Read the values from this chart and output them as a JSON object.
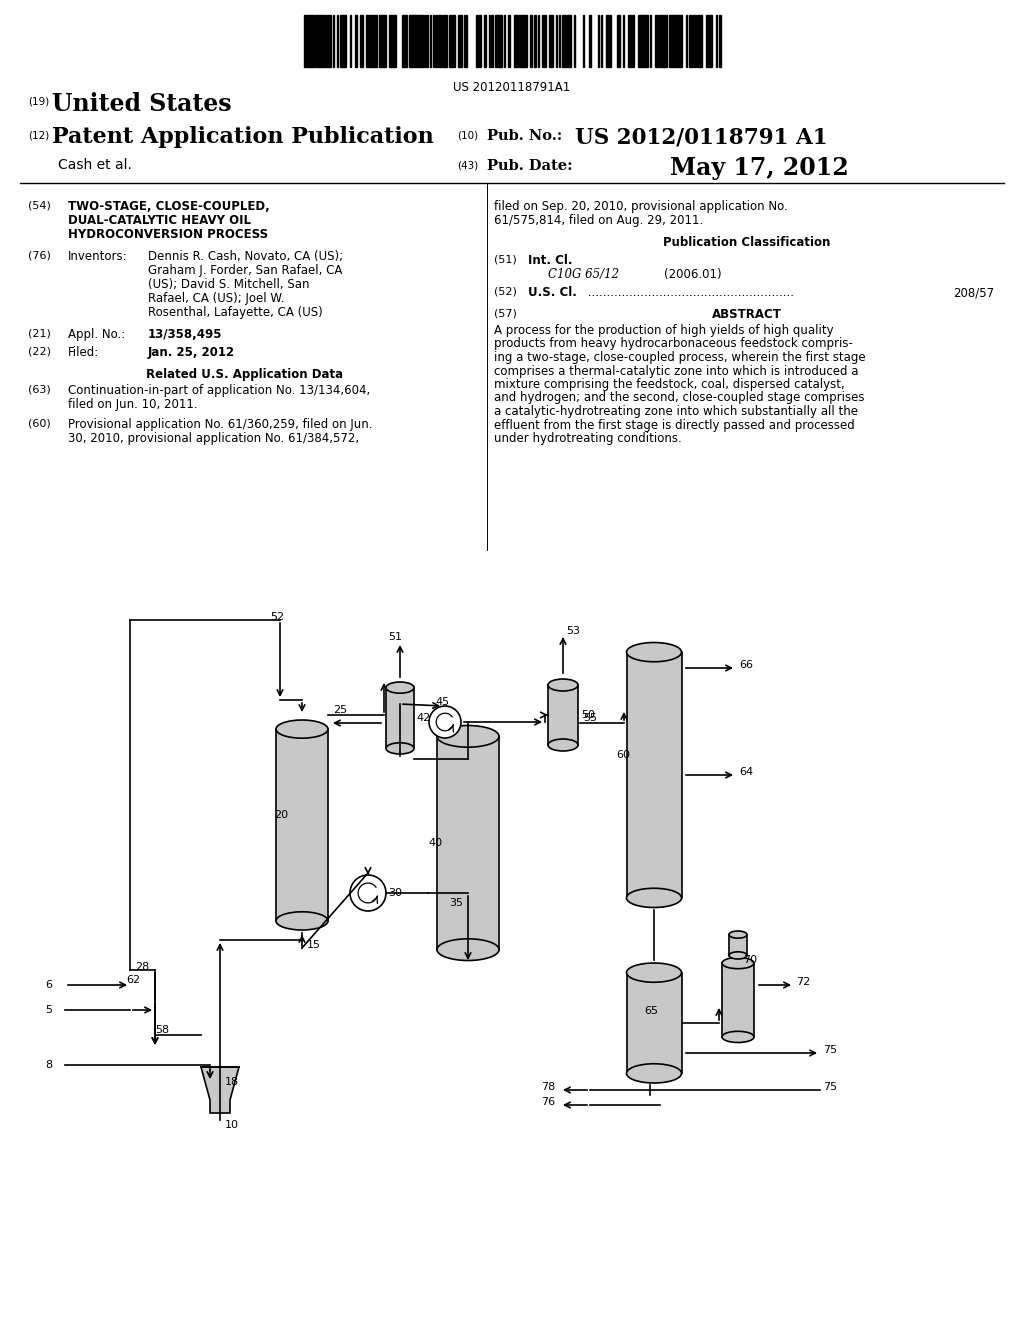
{
  "background_color": "#ffffff",
  "barcode_text": "US 20120118791A1",
  "header": {
    "us_text": "United States",
    "patent_text": "Patent Application Publication",
    "author": "Cash et al.",
    "pub_no_label": "Pub. No.:",
    "pub_no": "US 2012/0118791 A1",
    "pub_date_label": "Pub. Date:",
    "pub_date": "May 17, 2012"
  },
  "left_col": {
    "item54_title_line1": "TWO-STAGE, CLOSE-COUPLED,",
    "item54_title_line2": "DUAL-CATALYTIC HEAVY OIL",
    "item54_title_line3": "HYDROCONVERSION PROCESS",
    "item76_key": "Inventors:",
    "item76_val1": "Dennis R. Cash, Novato, CA (US);",
    "item76_val2": "Graham J. Forder, San Rafael, CA",
    "item76_val3": "(US); David S. Mitchell, San",
    "item76_val4": "Rafael, CA (US); Joel W.",
    "item76_val5": "Rosenthal, Lafayette, CA (US)",
    "item21_key": "Appl. No.:",
    "item21_value": "13/358,495",
    "item22_key": "Filed:",
    "item22_value": "Jan. 25, 2012",
    "related_header": "Related U.S. Application Data",
    "item63_text1": "Continuation-in-part of application No. 13/134,604,",
    "item63_text2": "filed on Jun. 10, 2011.",
    "item60_text1": "Provisional application No. 61/360,259, filed on Jun.",
    "item60_text2": "30, 2010, provisional application No. 61/384,572,"
  },
  "right_col": {
    "cont_text1": "filed on Sep. 20, 2010, provisional application No.",
    "cont_text2": "61/575,814, filed on Aug. 29, 2011.",
    "pub_class_header": "Publication Classification",
    "item51_key": "Int. Cl.",
    "item51_class": "C10G 65/12",
    "item51_year": "(2006.01)",
    "item52_key": "U.S. Cl.",
    "item52_value": "208/57",
    "abstract_header": "ABSTRACT",
    "abstract_text1": "A process for the production of high yields of high quality",
    "abstract_text2": "products from heavy hydrocarbonaceous feedstock compris-",
    "abstract_text3": "ing a two-stage, close-coupled process, wherein the first stage",
    "abstract_text4": "comprises a thermal-catalytic zone into which is introduced a",
    "abstract_text5": "mixture comprising the feedstock, coal, dispersed catalyst,",
    "abstract_text6": "and hydrogen; and the second, close-coupled stage comprises",
    "abstract_text7": "a catalytic-hydrotreating zone into which substantially all the",
    "abstract_text8": "effluent from the first stage is directly passed and processed",
    "abstract_text9": "under hydrotreating conditions."
  },
  "fill_color": "#c8c8c8",
  "line_color": "#000000",
  "lw": 1.2
}
